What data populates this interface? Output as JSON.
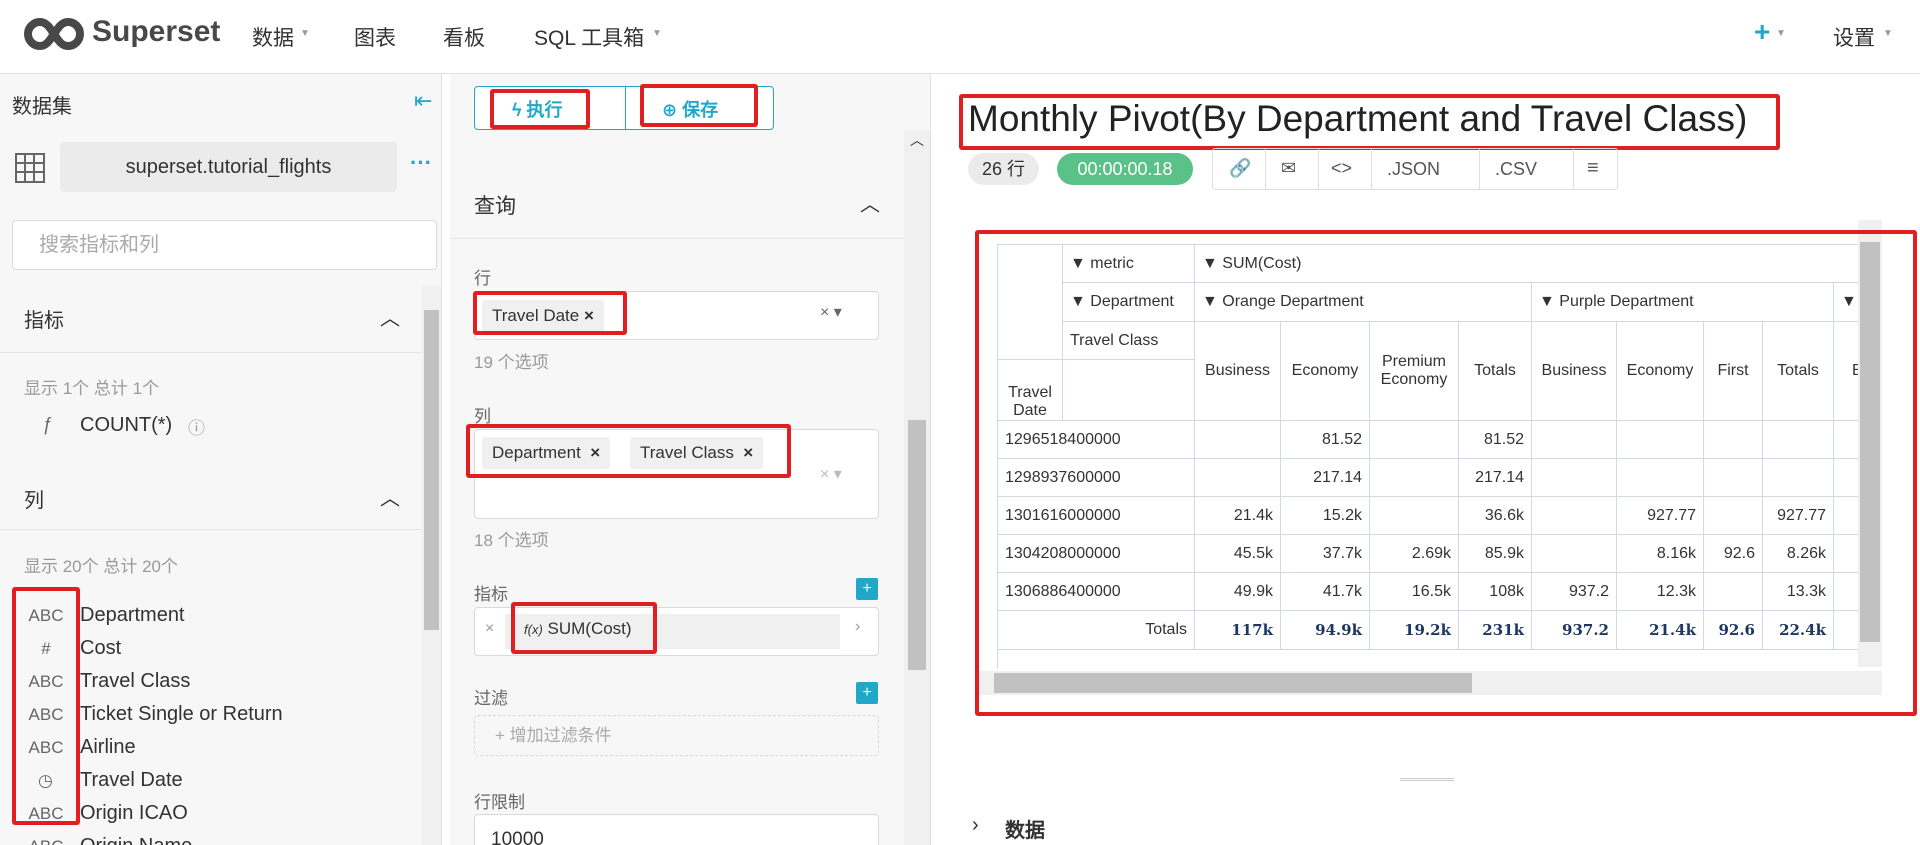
{
  "nav": {
    "brand": "Superset",
    "menu": [
      "数据",
      "图表",
      "看板",
      "SQL 工具箱"
    ],
    "settings": "设置"
  },
  "datasource": {
    "title": "数据集",
    "dataset": "superset.tutorial_flights",
    "search_placeholder": "搜索指标和列",
    "metrics_section": "指标",
    "metrics_count": "显示 1个 总计 1个",
    "metrics": [
      "COUNT(*)"
    ],
    "columns_section": "列",
    "columns_count": "显示 20个 总计 20个",
    "columns": [
      {
        "type": "ABC",
        "name": "Department"
      },
      {
        "type": "#",
        "name": "Cost"
      },
      {
        "type": "ABC",
        "name": "Travel Class"
      },
      {
        "type": "ABC",
        "name": "Ticket Single or Return"
      },
      {
        "type": "ABC",
        "name": "Airline"
      },
      {
        "name": "Travel Date"
      },
      {
        "type": "ABC",
        "name": "Origin ICAO"
      },
      {
        "type": "ABC",
        "name": "Origin Name"
      }
    ]
  },
  "controls": {
    "run": "执行",
    "save": "保存",
    "section": "查询",
    "rows_label": "行",
    "rows_chips": [
      "Travel Date"
    ],
    "rows_options": "19 个选项",
    "cols_label": "列",
    "cols_chips": [
      "Department",
      "Travel Class"
    ],
    "cols_options": "18 个选项",
    "metrics_label": "指标",
    "metric": "SUM(Cost)",
    "filters_label": "过滤",
    "filter_placeholder": "增加过滤条件",
    "row_limit_label": "行限制",
    "row_limit": "10000"
  },
  "chart": {
    "title": "Monthly Pivot(By Department and Travel Class)",
    "row_count": "26 行",
    "duration": "00:00:00.18",
    "exports": [
      ".JSON",
      ".CSV"
    ],
    "data_section": "数据",
    "pivot": {
      "axis_labels": [
        "▼ metric",
        "▼ Department",
        "Travel Class"
      ],
      "metric": "▼ SUM(Cost)",
      "row_header": "Travel Date",
      "departments": [
        {
          "name": "▼ Orange Department",
          "columns": [
            "Business",
            "Economy",
            "Premium Economy",
            "Totals"
          ]
        },
        {
          "name": "▼ Purple Department",
          "columns": [
            "Business",
            "Economy",
            "First",
            "Totals"
          ]
        }
      ],
      "clipped_department": "▼",
      "clipped_column": "Business",
      "rows": [
        {
          "date": "1296518400000",
          "cells": [
            null,
            "81.52",
            null,
            "81.52",
            null,
            null,
            null,
            null
          ]
        },
        {
          "date": "1298937600000",
          "cells": [
            null,
            "217.14",
            null,
            "217.14",
            null,
            null,
            null,
            null
          ]
        },
        {
          "date": "1301616000000",
          "cells": [
            "21.4k",
            "15.2k",
            null,
            "36.6k",
            null,
            "927.77",
            null,
            "927.77"
          ]
        },
        {
          "date": "1304208000000",
          "cells": [
            "45.5k",
            "37.7k",
            "2.69k",
            "85.9k",
            null,
            "8.16k",
            "92.6",
            "8.26k"
          ]
        },
        {
          "date": "1306886400000",
          "cells": [
            "49.9k",
            "41.7k",
            "16.5k",
            "108k",
            "937.2",
            "12.3k",
            null,
            "13.3k"
          ]
        }
      ],
      "totals": {
        "label": "Totals",
        "cells": [
          "117k",
          "94.9k",
          "19.2k",
          "231k",
          "937.2",
          "21.4k",
          "92.6",
          "22.4k"
        ]
      }
    }
  }
}
